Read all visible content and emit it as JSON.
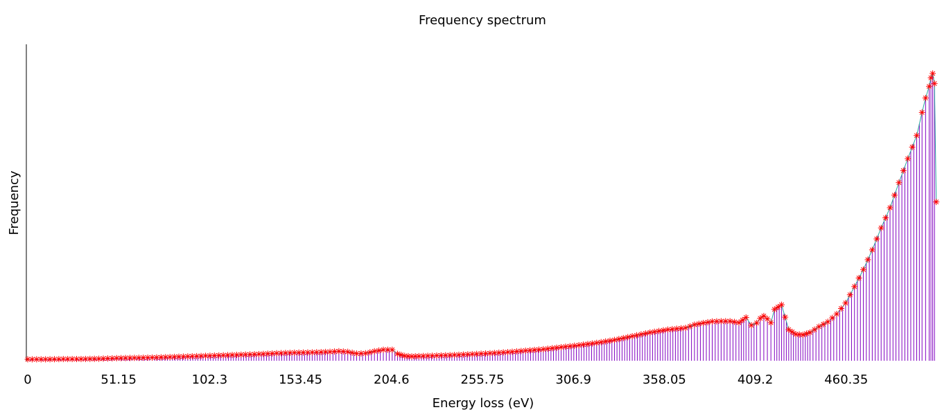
{
  "chart_data": {
    "type": "line",
    "title": "Frequency spectrum",
    "xlabel": "Energy loss (eV)",
    "ylabel": "Frequency",
    "xlim": [
      0,
      511.5
    ],
    "ylim": [
      0,
      1
    ],
    "x_ticks": [
      "0",
      "51.15",
      "102.3",
      "153.45",
      "204.6",
      "255.75",
      "306.9",
      "358.05",
      "409.2",
      "460.35"
    ],
    "x_tick_values": [
      0,
      51.15,
      102.3,
      153.45,
      204.6,
      255.75,
      306.9,
      358.05,
      409.2,
      460.35
    ],
    "grid": false,
    "legend": "none",
    "colors": {
      "stems": "#8000c0",
      "line": "#2aa6a0",
      "markers": "#ff0000"
    },
    "series": [
      {
        "x": [
          0,
          10,
          20,
          30,
          40,
          50,
          60,
          70,
          80,
          90,
          100,
          110,
          120,
          130,
          140,
          150,
          160,
          170,
          175,
          180,
          185,
          190,
          195,
          200,
          205,
          208,
          212,
          216,
          220,
          230,
          240,
          250,
          260,
          270,
          280,
          290,
          300,
          310,
          320,
          330,
          340,
          350,
          360,
          370,
          375,
          380,
          385,
          390,
          395,
          400,
          404,
          407,
          410,
          412,
          414,
          416,
          418,
          420,
          424,
          428,
          432,
          436,
          440,
          445,
          450,
          455,
          460,
          465,
          470,
          475,
          480,
          485,
          490,
          495,
          500,
          503,
          505,
          507,
          508,
          509,
          510,
          511
        ],
        "values": [
          0.005,
          0.005,
          0.006,
          0.006,
          0.007,
          0.009,
          0.01,
          0.011,
          0.013,
          0.015,
          0.017,
          0.019,
          0.021,
          0.023,
          0.026,
          0.028,
          0.029,
          0.031,
          0.033,
          0.031,
          0.025,
          0.026,
          0.033,
          0.038,
          0.038,
          0.024,
          0.017,
          0.015,
          0.016,
          0.018,
          0.02,
          0.023,
          0.026,
          0.03,
          0.035,
          0.04,
          0.047,
          0.054,
          0.062,
          0.072,
          0.085,
          0.098,
          0.108,
          0.114,
          0.125,
          0.131,
          0.136,
          0.137,
          0.137,
          0.132,
          0.15,
          0.123,
          0.131,
          0.147,
          0.155,
          0.145,
          0.132,
          0.178,
          0.194,
          0.108,
          0.092,
          0.09,
          0.098,
          0.118,
          0.135,
          0.162,
          0.2,
          0.257,
          0.316,
          0.384,
          0.46,
          0.53,
          0.617,
          0.7,
          0.78,
          0.86,
          0.91,
          0.95,
          0.98,
          0.995,
          0.96,
          0.55
        ]
      }
    ]
  }
}
